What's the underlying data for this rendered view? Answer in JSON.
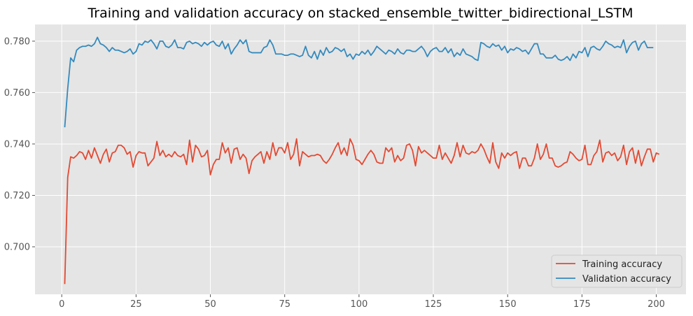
{
  "chart_data": {
    "type": "line",
    "title": "Training and validation accuracy on stacked_ensemble_twitter_bidirectional_LSTM",
    "xlabel": "",
    "ylabel": "",
    "xlim": [
      -9,
      210
    ],
    "ylim": [
      0.6815,
      0.7865
    ],
    "xticks": [
      0,
      25,
      50,
      75,
      100,
      125,
      150,
      175,
      200
    ],
    "yticks": [
      0.7,
      0.72,
      0.74,
      0.76,
      0.78
    ],
    "ytick_labels": [
      "0.700",
      "0.720",
      "0.740",
      "0.760",
      "0.780"
    ],
    "grid": true,
    "legend_position": "lower right",
    "background": "#e5e5e5",
    "series": [
      {
        "name": "Training accuracy",
        "color": "#e24a33",
        "x_start": 1,
        "x_step": 1,
        "values": [
          0.6855,
          0.727,
          0.735,
          0.7345,
          0.7355,
          0.737,
          0.7365,
          0.734,
          0.7375,
          0.7345,
          0.7385,
          0.7355,
          0.7325,
          0.736,
          0.738,
          0.733,
          0.7365,
          0.737,
          0.7395,
          0.7395,
          0.7385,
          0.736,
          0.737,
          0.731,
          0.7355,
          0.737,
          0.7365,
          0.7365,
          0.7315,
          0.733,
          0.7345,
          0.741,
          0.7355,
          0.7375,
          0.735,
          0.736,
          0.735,
          0.737,
          0.7355,
          0.735,
          0.736,
          0.732,
          0.7415,
          0.733,
          0.7395,
          0.738,
          0.735,
          0.7355,
          0.7375,
          0.728,
          0.732,
          0.734,
          0.734,
          0.7405,
          0.7365,
          0.7385,
          0.7325,
          0.738,
          0.7385,
          0.734,
          0.736,
          0.7345,
          0.7285,
          0.7335,
          0.735,
          0.736,
          0.737,
          0.7325,
          0.737,
          0.734,
          0.7405,
          0.7355,
          0.7385,
          0.7385,
          0.7365,
          0.7405,
          0.734,
          0.736,
          0.742,
          0.7315,
          0.737,
          0.736,
          0.735,
          0.7355,
          0.7355,
          0.736,
          0.7355,
          0.7335,
          0.7325,
          0.734,
          0.736,
          0.7385,
          0.7405,
          0.736,
          0.7385,
          0.7355,
          0.742,
          0.7395,
          0.734,
          0.7335,
          0.732,
          0.734,
          0.736,
          0.7375,
          0.736,
          0.733,
          0.7325,
          0.7325,
          0.7385,
          0.737,
          0.7385,
          0.733,
          0.7355,
          0.7335,
          0.7345,
          0.7395,
          0.74,
          0.7375,
          0.7315,
          0.739,
          0.7365,
          0.7375,
          0.7365,
          0.7355,
          0.7345,
          0.7345,
          0.7395,
          0.734,
          0.7365,
          0.7345,
          0.7325,
          0.7355,
          0.7405,
          0.735,
          0.7395,
          0.7365,
          0.736,
          0.737,
          0.7365,
          0.7375,
          0.74,
          0.738,
          0.735,
          0.7325,
          0.7405,
          0.733,
          0.7305,
          0.7365,
          0.7345,
          0.7365,
          0.7355,
          0.7365,
          0.737,
          0.7305,
          0.7345,
          0.7345,
          0.7315,
          0.7315,
          0.7345,
          0.74,
          0.734,
          0.736,
          0.74,
          0.7345,
          0.7345,
          0.7315,
          0.731,
          0.7315,
          0.7325,
          0.733,
          0.737,
          0.736,
          0.7345,
          0.7335,
          0.734,
          0.7395,
          0.732,
          0.732,
          0.7355,
          0.737,
          0.7415,
          0.733,
          0.7365,
          0.737,
          0.7355,
          0.7365,
          0.7335,
          0.735,
          0.7395,
          0.732,
          0.737,
          0.7385,
          0.7325,
          0.7375,
          0.7315,
          0.735,
          0.738,
          0.738,
          0.733,
          0.7365,
          0.736
        ]
      },
      {
        "name": "Validation accuracy",
        "color": "#348abd",
        "x_start": 1,
        "x_step": 1,
        "values": [
          0.7465,
          0.7615,
          0.7735,
          0.772,
          0.7765,
          0.7775,
          0.778,
          0.778,
          0.7785,
          0.778,
          0.779,
          0.7815,
          0.779,
          0.7785,
          0.7775,
          0.776,
          0.7775,
          0.7765,
          0.7765,
          0.776,
          0.7755,
          0.776,
          0.777,
          0.775,
          0.776,
          0.779,
          0.7785,
          0.78,
          0.7795,
          0.7805,
          0.779,
          0.777,
          0.78,
          0.78,
          0.778,
          0.7775,
          0.7785,
          0.7805,
          0.7775,
          0.7775,
          0.777,
          0.7795,
          0.78,
          0.779,
          0.7795,
          0.779,
          0.778,
          0.7795,
          0.7785,
          0.7795,
          0.78,
          0.7785,
          0.778,
          0.78,
          0.777,
          0.779,
          0.775,
          0.777,
          0.7785,
          0.7805,
          0.779,
          0.7805,
          0.776,
          0.7755,
          0.7755,
          0.7755,
          0.7755,
          0.7775,
          0.778,
          0.7805,
          0.7785,
          0.775,
          0.775,
          0.775,
          0.7745,
          0.7745,
          0.775,
          0.775,
          0.7745,
          0.774,
          0.7745,
          0.778,
          0.7745,
          0.7735,
          0.776,
          0.773,
          0.7765,
          0.7745,
          0.7775,
          0.7755,
          0.776,
          0.7775,
          0.777,
          0.776,
          0.777,
          0.774,
          0.775,
          0.773,
          0.775,
          0.7745,
          0.776,
          0.775,
          0.7765,
          0.7745,
          0.776,
          0.778,
          0.777,
          0.776,
          0.775,
          0.7765,
          0.776,
          0.775,
          0.777,
          0.7755,
          0.775,
          0.7765,
          0.7765,
          0.776,
          0.776,
          0.777,
          0.778,
          0.7765,
          0.774,
          0.776,
          0.777,
          0.7775,
          0.776,
          0.776,
          0.7775,
          0.7755,
          0.777,
          0.774,
          0.7755,
          0.7745,
          0.777,
          0.775,
          0.7745,
          0.774,
          0.773,
          0.7725,
          0.7795,
          0.779,
          0.778,
          0.7775,
          0.779,
          0.778,
          0.7785,
          0.7765,
          0.778,
          0.7755,
          0.777,
          0.7765,
          0.7775,
          0.777,
          0.776,
          0.7765,
          0.775,
          0.777,
          0.779,
          0.779,
          0.775,
          0.775,
          0.7735,
          0.7735,
          0.7735,
          0.7745,
          0.773,
          0.7725,
          0.773,
          0.774,
          0.7725,
          0.775,
          0.7735,
          0.776,
          0.7755,
          0.7775,
          0.774,
          0.7775,
          0.778,
          0.777,
          0.7765,
          0.778,
          0.78,
          0.779,
          0.7785,
          0.7775,
          0.778,
          0.7775,
          0.7805,
          0.7755,
          0.778,
          0.7795,
          0.78,
          0.7765,
          0.779,
          0.78,
          0.7775,
          0.7775,
          0.7775
        ]
      }
    ]
  }
}
